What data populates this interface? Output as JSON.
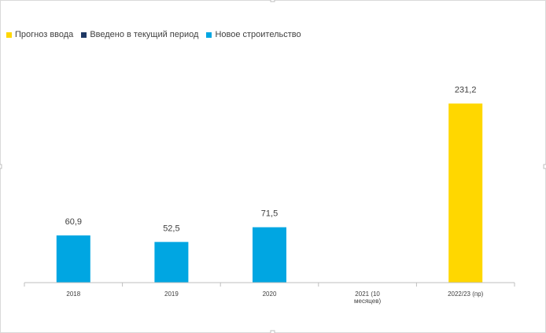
{
  "legend": [
    {
      "name": "Прогноз ввода",
      "color": "#FFD700"
    },
    {
      "name": "Введено в текущий период",
      "color": "#1F3864"
    },
    {
      "name": "Новое строительство",
      "color": "#00A6E2"
    }
  ],
  "chart_data": {
    "type": "bar",
    "categories": [
      "2018",
      "2019",
      "2020",
      "2021 (10 месяцев)",
      "2022/23 (пр)"
    ],
    "category_lines": [
      [
        "2018"
      ],
      [
        "2019"
      ],
      [
        "2020"
      ],
      [
        "2021 (10",
        "месяцев)"
      ],
      [
        "2022/23 (пр)"
      ]
    ],
    "series": [
      {
        "name": "Прогноз ввода",
        "color": "#FFD700",
        "values": [
          null,
          null,
          null,
          null,
          231.2
        ]
      },
      {
        "name": "Введено в текущий период",
        "color": "#1F3864",
        "values": [
          null,
          null,
          null,
          null,
          null
        ]
      },
      {
        "name": "Новое строительство",
        "color": "#00A6E2",
        "values": [
          60.9,
          52.5,
          71.5,
          null,
          null
        ]
      }
    ],
    "data_labels": [
      "60,9",
      "52,5",
      "71,5",
      "",
      "231,2"
    ],
    "ylim": [
      0,
      250
    ],
    "grid": false,
    "legend_position": "top-left",
    "title": "",
    "xlabel": "",
    "ylabel": ""
  }
}
